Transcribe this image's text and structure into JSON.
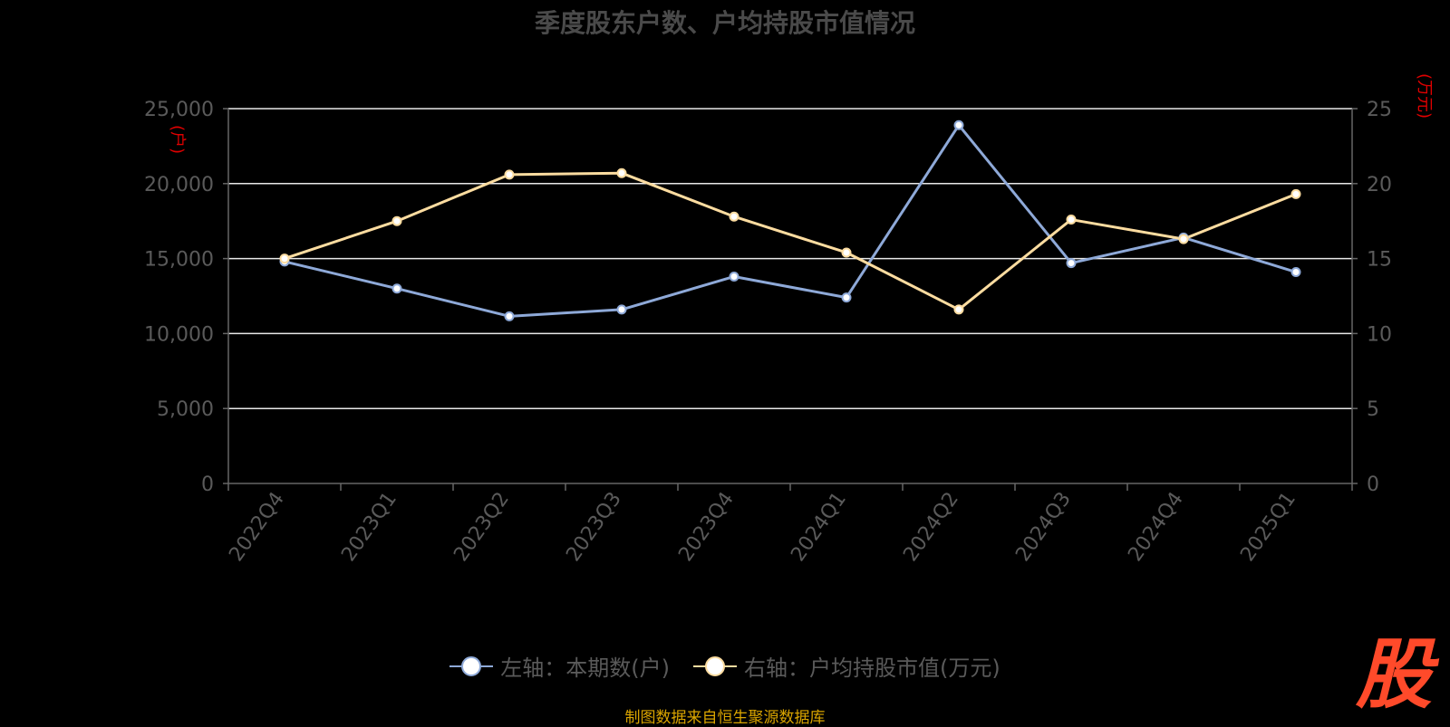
{
  "chart_data": {
    "type": "line",
    "title": "季度股东户数、户均持股市值情况",
    "categories": [
      "2022Q4",
      "2023Q1",
      "2023Q2",
      "2023Q3",
      "2023Q4",
      "2024Q1",
      "2024Q2",
      "2024Q3",
      "2024Q4",
      "2025Q1"
    ],
    "series": [
      {
        "name": "左轴：本期数(户)",
        "axis": "left",
        "color": "#8ea9d8",
        "values": [
          14800,
          13000,
          11150,
          11600,
          13800,
          12400,
          23900,
          14700,
          16400,
          14100
        ]
      },
      {
        "name": "右轴：户均持股市值(万元)",
        "axis": "right",
        "color": "#fcdca0",
        "values": [
          15.0,
          17.5,
          20.6,
          20.7,
          17.8,
          15.4,
          11.6,
          17.6,
          16.3,
          19.3
        ]
      }
    ],
    "y_left": {
      "ylim": [
        0,
        25000
      ],
      "ticks": [
        "0",
        "5,000",
        "10,000",
        "15,000",
        "20,000",
        "25,000"
      ],
      "unit": "(户)"
    },
    "y_right": {
      "ylim": [
        0,
        25
      ],
      "ticks": [
        "0",
        "5",
        "10",
        "15",
        "20",
        "25"
      ],
      "unit": "(万元)"
    },
    "grid": true,
    "legend_position": "bottom-center"
  },
  "source": "制图数据来自恒生聚源数据库",
  "logo_text": "股"
}
